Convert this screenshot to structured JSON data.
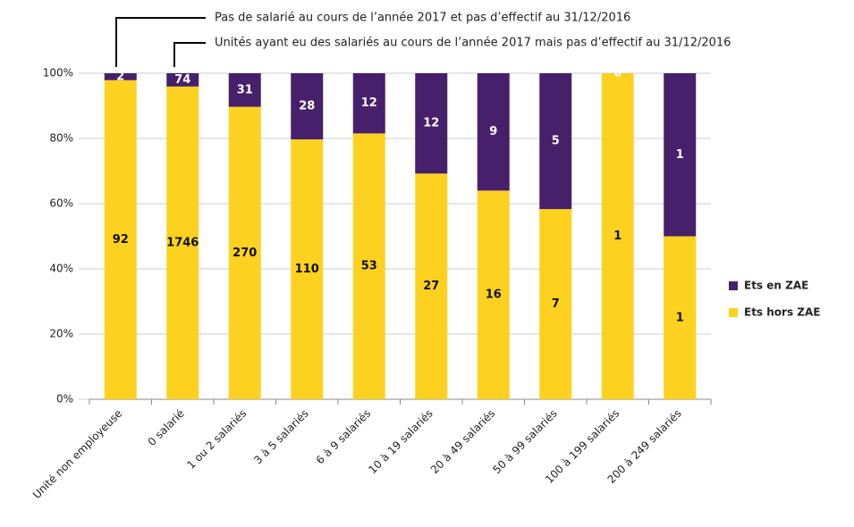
{
  "chart_data": {
    "type": "bar",
    "stacked": "percent",
    "annotations": [
      "Pas de salarié au cours de l’année 2017 et pas d’effectif au 31/12/2016",
      "Unités ayant eu des salariés au cours de l’année 2017 mais pas d’effectif au 31/12/2016"
    ],
    "categories": [
      "Unité non employeuse",
      "0 salarié",
      "1 ou 2 salariés",
      "3 à 5 salariés",
      "6 à 9 salariés",
      "10 à 19 salariés",
      "20 à 49 salariés",
      "50 à 99 salariés",
      "100 à 199 salariés",
      "200 à 249 salariés"
    ],
    "series": [
      {
        "name": "Ets hors ZAE",
        "color": "#fdd11f",
        "values": [
          92,
          1746,
          270,
          110,
          53,
          27,
          16,
          7,
          1,
          1
        ]
      },
      {
        "name": "Ets en ZAE",
        "color": "#47206b",
        "values": [
          2,
          74,
          31,
          28,
          12,
          12,
          9,
          5,
          0,
          1
        ]
      }
    ],
    "ylim": [
      0,
      100
    ],
    "yticks": [
      {
        "value": 0,
        "label": "0%"
      },
      {
        "value": 20,
        "label": "20%"
      },
      {
        "value": 40,
        "label": "40%"
      },
      {
        "value": 60,
        "label": "60%"
      },
      {
        "value": 80,
        "label": "80%"
      },
      {
        "value": 100,
        "label": "100%"
      }
    ],
    "legend": "right"
  }
}
